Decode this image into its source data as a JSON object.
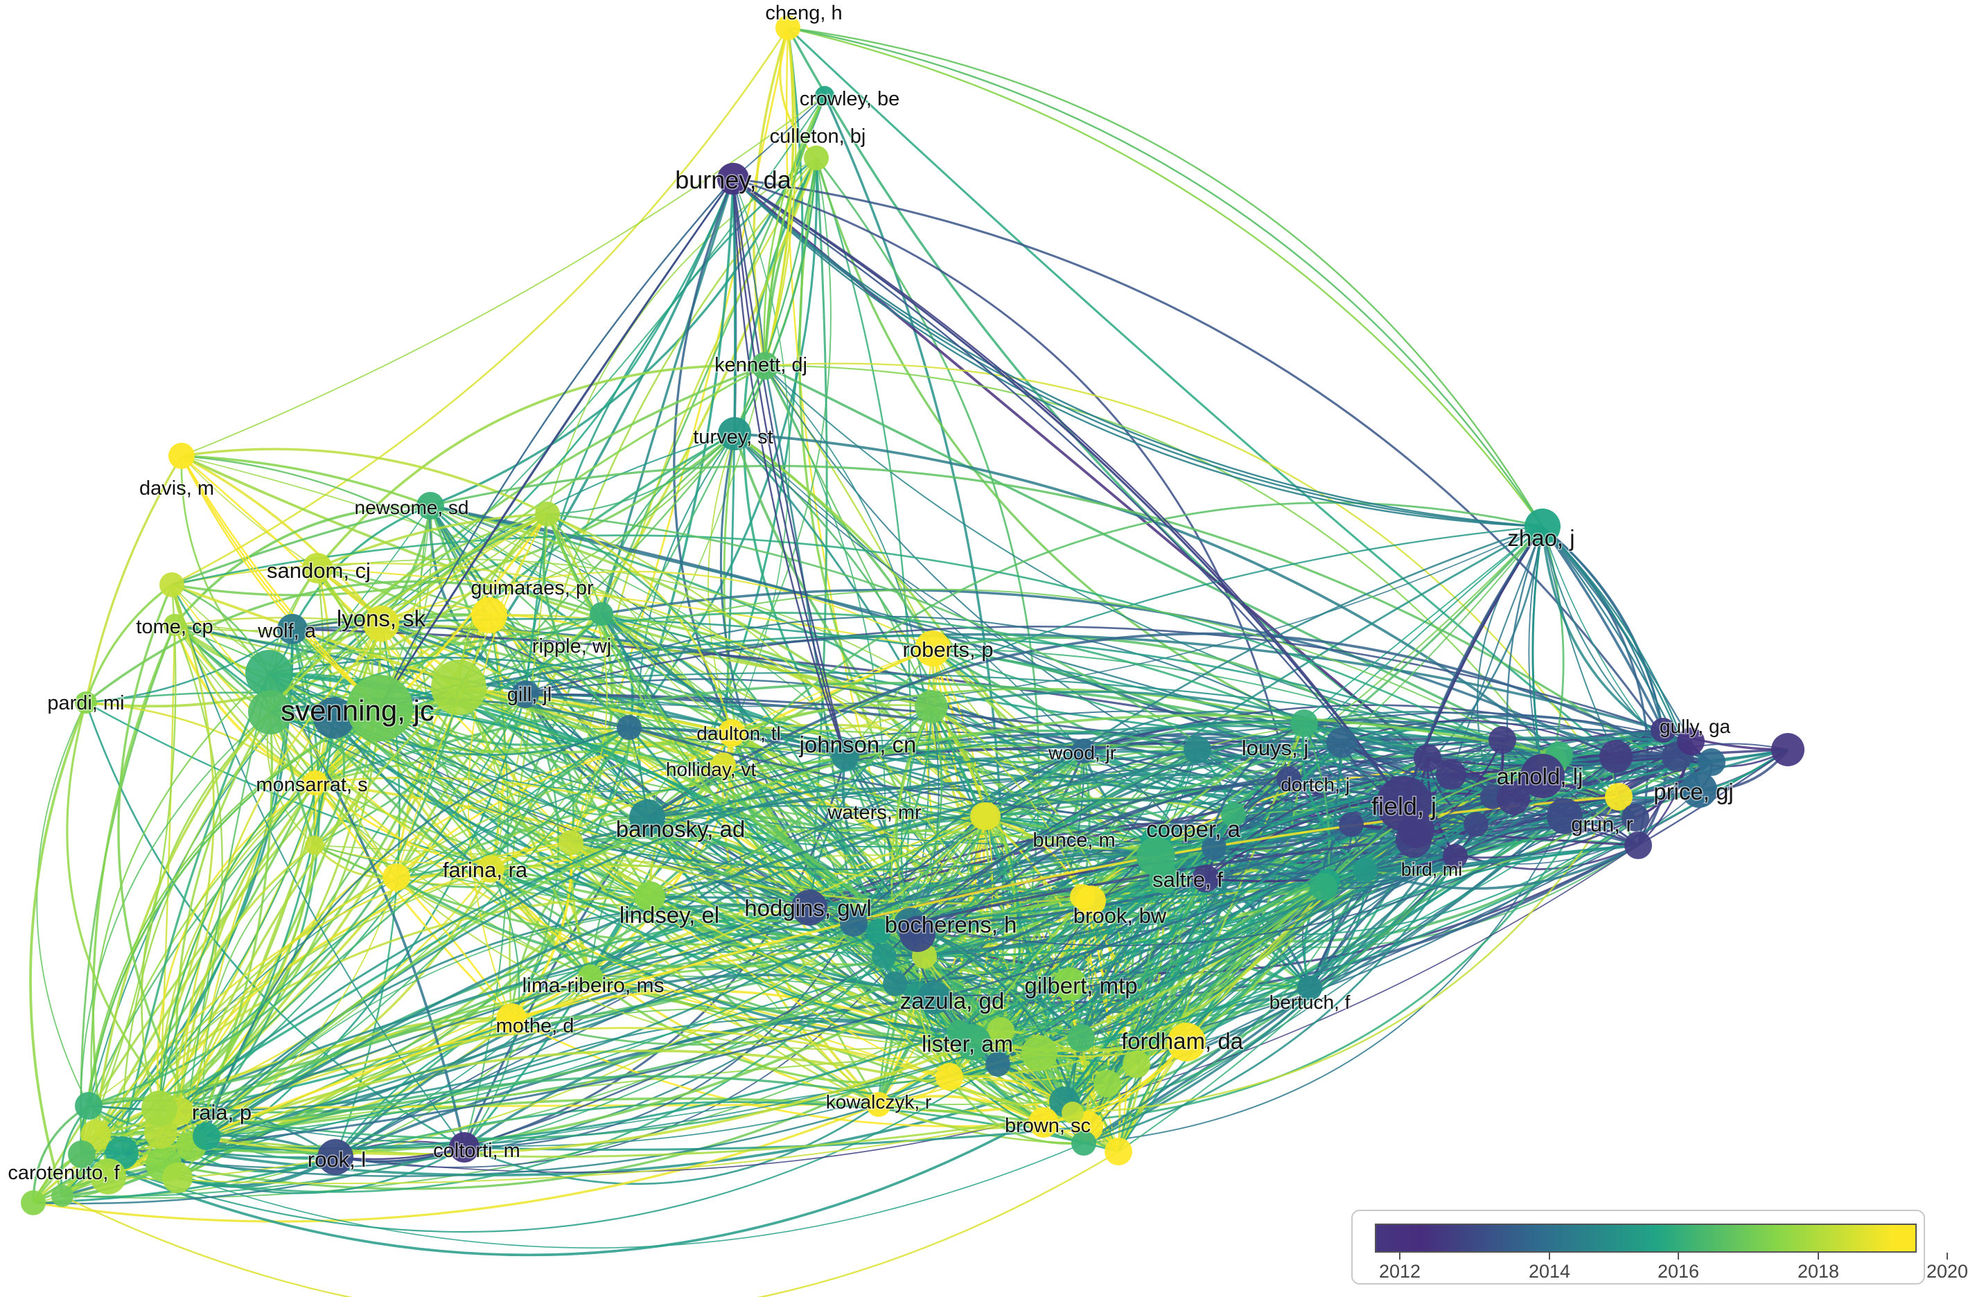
{
  "colors": {
    "y2012": "#482d7e",
    "y2014": "#2f6b8e",
    "y2016": "#21a585",
    "y2018": "#86d549",
    "y2020": "#fde725"
  },
  "nodes": [
    {
      "id": "cheng-h",
      "label": "cheng, h",
      "year": 2020.5
    },
    {
      "id": "crowley-be",
      "label": "crowley, be",
      "year": 2016.0
    },
    {
      "id": "culleton-bj",
      "label": "culleton, bj",
      "year": 2018.5
    },
    {
      "id": "burney-da",
      "label": "burney, da",
      "year": 2012.2
    },
    {
      "id": "kennett-dj",
      "label": "kennett, dj",
      "year": 2017.0
    },
    {
      "id": "turvey-st",
      "label": "turvey, st",
      "year": 2015.5
    },
    {
      "id": "davis-m",
      "label": "davis, m",
      "year": 2020.3
    },
    {
      "id": "newsome-sd",
      "label": "newsome, sd",
      "year": 2016.5
    },
    {
      "id": "sandom-cj",
      "label": "sandom, cj",
      "year": 2019.0
    },
    {
      "id": "guimaraes-pr",
      "label": "guimaraes, pr",
      "year": 2020.0
    },
    {
      "id": "tome-cp",
      "label": "tome, cp",
      "year": 2018.5
    },
    {
      "id": "wolf-a",
      "label": "wolf, a",
      "year": 2014.5
    },
    {
      "id": "lyons-sk",
      "label": "lyons, sk",
      "year": 2019.5
    },
    {
      "id": "ripple-wj",
      "label": "ripple, wj",
      "year": 2016.5
    },
    {
      "id": "roberts-p",
      "label": "roberts, p",
      "year": 2020.5
    },
    {
      "id": "pardi-mi",
      "label": "pardi, mi",
      "year": 2018.0
    },
    {
      "id": "svenning-jc",
      "label": "svenning, jc",
      "year": 2017.5
    },
    {
      "id": "gill-jl",
      "label": "gill, jl",
      "year": 2014.0
    },
    {
      "id": "daulton-tl",
      "label": "daulton, tl",
      "year": 2020.0
    },
    {
      "id": "johnson-cn",
      "label": "johnson, cn",
      "year": 2015.0
    },
    {
      "id": "monsarrat-s",
      "label": "monsarrat, s",
      "year": 2020.0
    },
    {
      "id": "holliday-vt",
      "label": "holliday, vt",
      "year": 2019.5
    },
    {
      "id": "wood-jr",
      "label": "wood, jr",
      "year": 2014.0
    },
    {
      "id": "louys-j",
      "label": "louys, j",
      "year": 2015.0
    },
    {
      "id": "dortch-j",
      "label": "dortch, j",
      "year": 2013.0
    },
    {
      "id": "field-j",
      "label": "field, j",
      "year": 2012.5
    },
    {
      "id": "arnold-lj",
      "label": "arnold, lj",
      "year": 2012.5
    },
    {
      "id": "gully-ga",
      "label": "gully, ga",
      "year": 2012.5
    },
    {
      "id": "price-gj",
      "label": "price, gj",
      "year": 2014.0
    },
    {
      "id": "zhao-j",
      "label": "zhao, j",
      "year": 2016.0
    },
    {
      "id": "grun-r",
      "label": "grun, r",
      "year": 2013.0
    },
    {
      "id": "bird-mi",
      "label": "bird, mi",
      "year": 2012.5
    },
    {
      "id": "waters-mr",
      "label": "waters, mr",
      "year": 2019.5
    },
    {
      "id": "bunce-m",
      "label": "bunce, m",
      "year": 2016.0
    },
    {
      "id": "cooper-a",
      "label": "cooper, a",
      "year": 2016.5
    },
    {
      "id": "barnosky-ad",
      "label": "barnosky, ad",
      "year": 2015.0
    },
    {
      "id": "farina-ra",
      "label": "farina, ra",
      "year": 2019.5
    },
    {
      "id": "saltre-f",
      "label": "saltre, f",
      "year": 2016.5
    },
    {
      "id": "lindsey-el",
      "label": "lindsey, el",
      "year": 2018.0
    },
    {
      "id": "hodgins-gwl",
      "label": "hodgins, gwl",
      "year": 2013.0
    },
    {
      "id": "bocherens-h",
      "label": "bocherens, h",
      "year": 2013.0
    },
    {
      "id": "brook-bw",
      "label": "brook, bw",
      "year": 2020.0
    },
    {
      "id": "lima-ribeiro-ms",
      "label": "lima-ribeiro, ms",
      "year": 2018.0
    },
    {
      "id": "zazula-gd",
      "label": "zazula, gd",
      "year": 2015.0
    },
    {
      "id": "gilbert-mtp",
      "label": "gilbert, mtp",
      "year": 2018.0
    },
    {
      "id": "bertuch-f",
      "label": "bertuch, f",
      "year": 2015.0
    },
    {
      "id": "mothe-d",
      "label": "mothe, d",
      "year": 2020.0
    },
    {
      "id": "lister-am",
      "label": "lister, am",
      "year": 2016.5
    },
    {
      "id": "fordham-da",
      "label": "fordham, da",
      "year": 2020.0
    },
    {
      "id": "kowalczyk-r",
      "label": "kowalczyk, r",
      "year": 2020.0
    },
    {
      "id": "brown-sc",
      "label": "brown, sc",
      "year": 2020.5
    },
    {
      "id": "raia-p",
      "label": "raia, p",
      "year": 2018.5
    },
    {
      "id": "carotenuto-f",
      "label": "carotenuto, f",
      "year": 2017.0
    },
    {
      "id": "rook-l",
      "label": "rook, l",
      "year": 2013.0
    },
    {
      "id": "coltorti-m",
      "label": "coltorti, m",
      "year": 2012.3
    }
  ],
  "legend": {
    "ticks": [
      "2012",
      "2014",
      "2016",
      "2018",
      "2020"
    ]
  }
}
